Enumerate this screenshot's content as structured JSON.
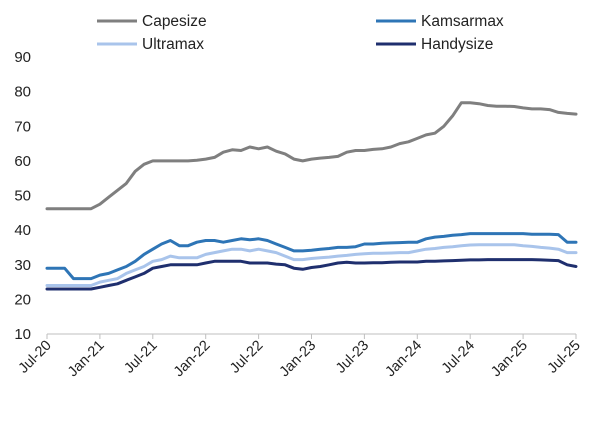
{
  "chart_data": {
    "type": "line",
    "title": "",
    "xlabel": "",
    "ylabel": "",
    "ylim": [
      10,
      90
    ],
    "yticks": [
      10,
      20,
      30,
      40,
      50,
      60,
      70,
      80,
      90
    ],
    "grid": false,
    "legend_position": "top",
    "x_range": [
      "2020-07",
      "2025-07"
    ],
    "x_tick_labels": [
      "Jul-20",
      "Jan-21",
      "Jul-21",
      "Jan-22",
      "Jul-22",
      "Jan-23",
      "Jul-23",
      "Jan-24",
      "Jul-24",
      "Jan-25",
      "Jul-25"
    ],
    "x": [
      "2020-07",
      "2020-08",
      "2020-09",
      "2020-10",
      "2020-11",
      "2020-12",
      "2021-01",
      "2021-02",
      "2021-03",
      "2021-04",
      "2021-05",
      "2021-06",
      "2021-07",
      "2021-08",
      "2021-09",
      "2021-10",
      "2021-11",
      "2021-12",
      "2022-01",
      "2022-02",
      "2022-03",
      "2022-04",
      "2022-05",
      "2022-06",
      "2022-07",
      "2022-08",
      "2022-09",
      "2022-10",
      "2022-11",
      "2022-12",
      "2023-01",
      "2023-02",
      "2023-03",
      "2023-04",
      "2023-05",
      "2023-06",
      "2023-07",
      "2023-08",
      "2023-09",
      "2023-10",
      "2023-11",
      "2023-12",
      "2024-01",
      "2024-02",
      "2024-03",
      "2024-04",
      "2024-05",
      "2024-06",
      "2024-07",
      "2024-08",
      "2024-09",
      "2024-10",
      "2024-11",
      "2024-12",
      "2025-01",
      "2025-02",
      "2025-03",
      "2025-04",
      "2025-05",
      "2025-06",
      "2025-07"
    ],
    "series": [
      {
        "name": "Capesize",
        "color": "#7f7f7f",
        "values": [
          46.2,
          46.2,
          46.2,
          46.2,
          46.2,
          46.2,
          47.5,
          49.5,
          51.5,
          53.5,
          57.0,
          59.0,
          60.0,
          60.0,
          60.0,
          60.0,
          60.0,
          60.2,
          60.5,
          61.0,
          62.5,
          63.2,
          63.0,
          64.0,
          63.5,
          64.0,
          62.8,
          62.0,
          60.5,
          60.0,
          60.5,
          60.8,
          61.0,
          61.3,
          62.5,
          63.0,
          63.0,
          63.3,
          63.5,
          64.0,
          65.0,
          65.5,
          66.5,
          67.5,
          68.0,
          70.0,
          73.0,
          76.8,
          76.8,
          76.5,
          76.0,
          75.8,
          75.8,
          75.7,
          75.3,
          75.0,
          75.0,
          74.8,
          74.0,
          73.7,
          73.5
        ]
      },
      {
        "name": "Kamsarmax",
        "color": "#2e75b6",
        "values": [
          29.0,
          29.0,
          29.0,
          26.0,
          26.0,
          26.0,
          27.0,
          27.5,
          28.5,
          29.5,
          31.0,
          33.0,
          34.5,
          36.0,
          37.0,
          35.5,
          35.5,
          36.5,
          37.0,
          37.0,
          36.5,
          37.0,
          37.5,
          37.2,
          37.5,
          37.0,
          36.0,
          35.0,
          34.0,
          34.0,
          34.2,
          34.5,
          34.7,
          35.0,
          35.0,
          35.2,
          36.0,
          36.0,
          36.2,
          36.3,
          36.4,
          36.5,
          36.5,
          37.5,
          38.0,
          38.2,
          38.5,
          38.7,
          39.0,
          39.0,
          39.0,
          39.0,
          39.0,
          39.0,
          39.0,
          38.8,
          38.8,
          38.8,
          38.7,
          36.5,
          36.5
        ]
      },
      {
        "name": "Ultramax",
        "color": "#a9c4eb",
        "values": [
          24.0,
          24.0,
          24.0,
          24.0,
          24.0,
          24.0,
          25.0,
          25.5,
          26.0,
          27.5,
          28.5,
          29.5,
          31.0,
          31.5,
          32.5,
          32.0,
          32.0,
          32.0,
          33.0,
          33.5,
          34.0,
          34.5,
          34.5,
          34.0,
          34.5,
          34.0,
          33.5,
          32.5,
          31.5,
          31.5,
          31.8,
          32.0,
          32.2,
          32.5,
          32.7,
          33.0,
          33.2,
          33.3,
          33.3,
          33.4,
          33.5,
          33.5,
          34.0,
          34.5,
          34.7,
          35.0,
          35.2,
          35.5,
          35.7,
          35.8,
          35.8,
          35.8,
          35.8,
          35.8,
          35.5,
          35.3,
          35.0,
          34.8,
          34.5,
          33.5,
          33.5
        ]
      },
      {
        "name": "Handysize",
        "color": "#1f2f6e",
        "values": [
          23.0,
          23.0,
          23.0,
          23.0,
          23.0,
          23.0,
          23.5,
          24.0,
          24.5,
          25.5,
          26.5,
          27.5,
          29.0,
          29.5,
          30.0,
          30.0,
          30.0,
          30.0,
          30.5,
          31.0,
          31.0,
          31.0,
          31.0,
          30.5,
          30.5,
          30.5,
          30.2,
          30.0,
          29.0,
          28.7,
          29.2,
          29.5,
          30.0,
          30.5,
          30.7,
          30.5,
          30.5,
          30.6,
          30.6,
          30.7,
          30.8,
          30.8,
          30.8,
          31.0,
          31.0,
          31.1,
          31.2,
          31.3,
          31.4,
          31.4,
          31.5,
          31.5,
          31.5,
          31.5,
          31.5,
          31.5,
          31.4,
          31.3,
          31.2,
          30.0,
          29.5
        ]
      }
    ]
  }
}
